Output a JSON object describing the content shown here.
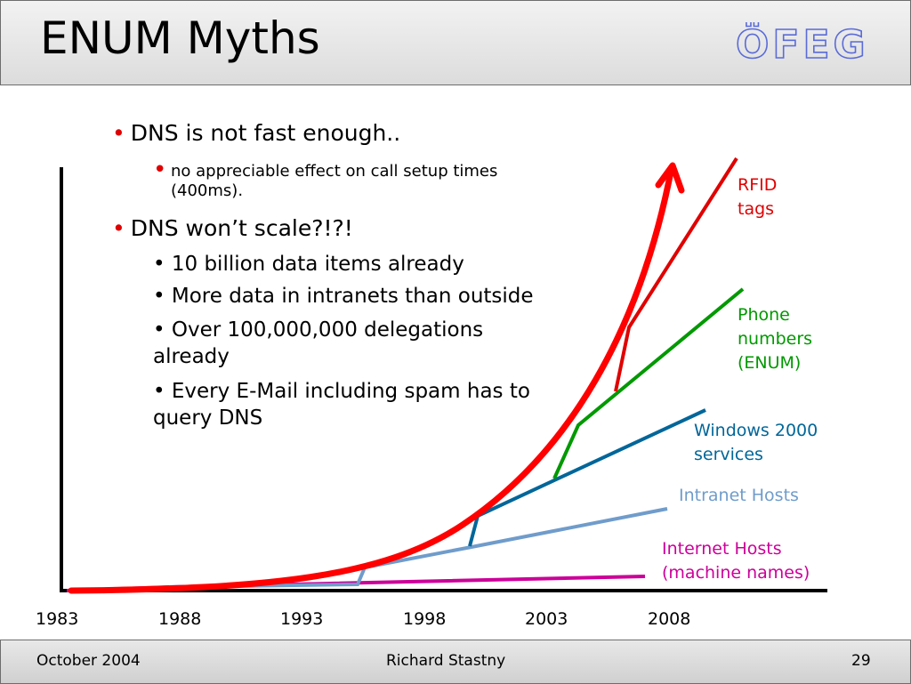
{
  "slide": {
    "title": "ENUM Myths",
    "logo_text": "ÖFEG",
    "bullets": {
      "b1": "DNS is not fast enough..",
      "b1_sub": "no appreciable effect on call setup times (400ms).",
      "b2": "DNS won’t scale?!?!",
      "b2_subs": [
        "• 10 billion data items already",
        "• More data in intranets than outside",
        "• Over 100,000,000 delegations already",
        "• Every E-Mail including spam has to query DNS"
      ]
    },
    "bullet_marker": "•"
  },
  "chart_data": {
    "type": "line",
    "x_ticks": [
      "1983",
      "1988",
      "1993",
      "1998",
      "2003",
      "2008"
    ],
    "series": [
      {
        "name": "Internet Hosts (machine names)",
        "color": "#cc0099"
      },
      {
        "name": "Intranet Hosts",
        "color": "#6f9ccb"
      },
      {
        "name": "Windows 2000 services",
        "color": "#006699"
      },
      {
        "name": "Phone numbers (ENUM)",
        "color": "#009900"
      },
      {
        "name": "RFID tags",
        "color": "#e00000"
      }
    ],
    "labels": {
      "rfid_1": "RFID",
      "rfid_2": "tags",
      "phone_1": "Phone",
      "phone_2": "numbers",
      "phone_3": "(ENUM)",
      "win_1": "Windows 2000",
      "win_2": "services",
      "intranet": "Intranet Hosts",
      "internet_1": "Internet Hosts",
      "internet_2": "(machine names)"
    },
    "growth_arrow_color": "#ff0000"
  },
  "footer": {
    "date": "October 2004",
    "author": "Richard Stastny",
    "page": "29"
  }
}
